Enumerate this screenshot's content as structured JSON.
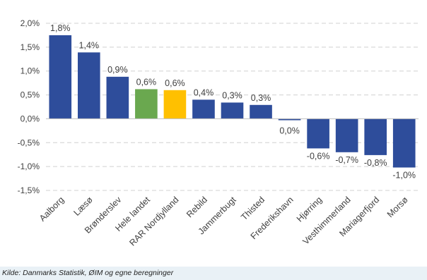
{
  "chart_data": {
    "type": "bar",
    "categories": [
      "Aalborg",
      "Læsø",
      "Brønderslev",
      "Hele landet",
      "RAR Nordjylland",
      "Rebild",
      "Jammerbugt",
      "Thisted",
      "Frederikshavn",
      "Hjørring",
      "Vesthimmerland",
      "Mariagerfjord",
      "Morsø"
    ],
    "values": [
      1.75,
      1.39,
      0.88,
      0.62,
      0.6,
      0.4,
      0.34,
      0.29,
      -0.03,
      -0.62,
      -0.7,
      -0.76,
      -1.02
    ],
    "data_labels": [
      "1,8%",
      "1,4%",
      "0,9%",
      "0,6%",
      "0,6%",
      "0,4%",
      "0,3%",
      "0,3%",
      "0,0%",
      "-0,6%",
      "-0,7%",
      "-0,8%",
      "-1,0%"
    ],
    "colors": [
      "#2e4d9b",
      "#2e4d9b",
      "#2e4d9b",
      "#6aa84f",
      "#ffc000",
      "#2e4d9b",
      "#2e4d9b",
      "#2e4d9b",
      "#2e4d9b",
      "#2e4d9b",
      "#2e4d9b",
      "#2e4d9b",
      "#2e4d9b"
    ],
    "ylim": [
      -1.5,
      2.0
    ],
    "yticks": [
      2.0,
      1.5,
      1.0,
      0.5,
      0.0,
      -0.5,
      -1.0,
      -1.5
    ],
    "ytick_labels": [
      "2,0%",
      "1,5%",
      "1,0%",
      "0,5%",
      "0,0%",
      "-0,5%",
      "-1,0%",
      "-1,5%"
    ],
    "grid": true,
    "title": "",
    "xlabel": "",
    "ylabel": ""
  },
  "source_note": "Kilde: Danmarks Statistik, ØIM og egne beregninger"
}
